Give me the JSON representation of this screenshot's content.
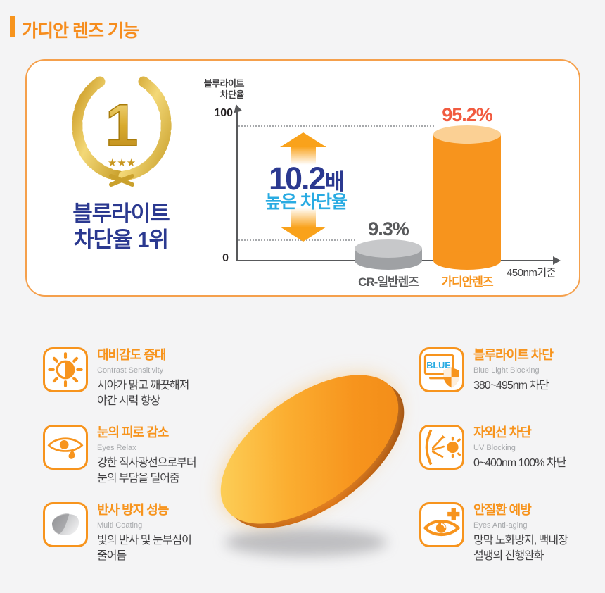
{
  "page": {
    "title": "가디안 렌즈 기능"
  },
  "award": {
    "rank": "1",
    "stars": "★★★",
    "caption_line1": "블루라이트",
    "caption_line2": "차단율 1위"
  },
  "chart_data": {
    "type": "bar",
    "title": "블루라이트\n차단율",
    "categories": [
      "CR-일반렌즈",
      "가디안렌즈"
    ],
    "values": [
      9.3,
      95.2
    ],
    "value_labels": [
      "9.3%",
      "95.2%"
    ],
    "series": [
      {
        "name": "블루라이트 차단율",
        "values": [
          9.3,
          95.2
        ]
      }
    ],
    "ylim": [
      0,
      100
    ],
    "y_tick_labels": [
      "0",
      "100"
    ],
    "x_axis_note": "450nm기준",
    "bar_colors": [
      "#9fa1a4",
      "#f7941d"
    ],
    "grid": "dotted guide lines at each bar peak",
    "legend_position": "none",
    "annotation": {
      "multiplier": "10.2",
      "unit": "배",
      "caption": "높은 차단율"
    }
  },
  "colors": {
    "accent_orange": "#f7941d",
    "navy": "#2b3990",
    "cyan": "#29abe2",
    "value_red": "#f15b40",
    "bar_gray": "#9fa1a4",
    "panel_border": "#f5a04c",
    "background": "#f4f4f5"
  },
  "features": {
    "left": [
      {
        "icon": "contrast-sun-icon",
        "title": "대비감도 증대",
        "subtitle": "Contrast Sensitivity",
        "desc": "시야가 맑고 깨끗해져\n야간 시력 향상"
      },
      {
        "icon": "eye-tear-icon",
        "title": "눈의 피로 감소",
        "subtitle": "Eyes Relax",
        "desc": "강한 직사광선으로부터\n눈의 부담을 덜어줌"
      },
      {
        "icon": "lens-coating-icon",
        "title": "반사 방지 성능",
        "subtitle": "Multi Coating",
        "desc": "빛의 반사 및 눈부심이\n줄어듬"
      }
    ],
    "right": [
      {
        "icon": "monitor-shield-icon",
        "title": "블루라이트 차단",
        "subtitle": "Blue Light Blocking",
        "desc": "380~495nm 차단",
        "badge": "BLUE"
      },
      {
        "icon": "uv-block-icon",
        "title": "자외선 차단",
        "subtitle": "UV Blocking",
        "desc": "0~400nm 100% 차단"
      },
      {
        "icon": "eye-plus-icon",
        "title": "안질환 예방",
        "subtitle": "Eyes Anti-aging",
        "desc": "망막 노화방지, 백내장\n설맹의 진행완화"
      }
    ]
  }
}
